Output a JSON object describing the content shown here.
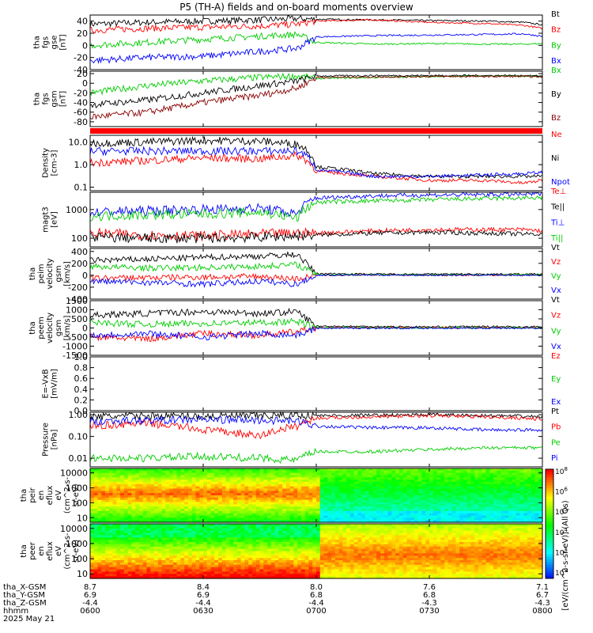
{
  "title": "P5 (TH-A) fields and on-board moments overview",
  "chart_data": [
    {
      "type": "line",
      "panel": "fgs_gse",
      "ylabel": [
        "tha",
        "fgs",
        "gse",
        "[nT]"
      ],
      "ylim": [
        -40,
        50
      ],
      "yticks": [
        -40,
        -20,
        0,
        20,
        40
      ],
      "series": [
        {
          "name": "Bt",
          "color": "#000000",
          "x": [
            600,
            615,
            630,
            645,
            655,
            700,
            715,
            730,
            745,
            755,
            800
          ],
          "y": [
            35,
            38,
            40,
            42,
            44,
            43,
            42,
            41,
            40,
            38,
            34
          ]
        },
        {
          "name": "Bz",
          "color": "#ff0000",
          "x": [
            600,
            615,
            630,
            645,
            655,
            700,
            715,
            730,
            745,
            755,
            800
          ],
          "y": [
            25,
            28,
            30,
            32,
            35,
            40,
            42,
            38,
            36,
            33,
            28
          ]
        },
        {
          "name": "By",
          "color": "#00cc00",
          "x": [
            600,
            615,
            630,
            645,
            655,
            700,
            715,
            730,
            745,
            755,
            800
          ],
          "y": [
            0,
            5,
            10,
            15,
            18,
            5,
            2,
            3,
            2,
            2,
            3
          ]
        },
        {
          "name": "Bx",
          "color": "#0000ff",
          "x": [
            600,
            615,
            630,
            645,
            655,
            700,
            715,
            730,
            745,
            755,
            800
          ],
          "y": [
            -25,
            -20,
            -18,
            -10,
            -5,
            14,
            16,
            17,
            18,
            19,
            15
          ]
        }
      ]
    },
    {
      "type": "line",
      "panel": "fgs_gsm",
      "ylabel": [
        "tha",
        "fgs",
        "gsm",
        "[nT]"
      ],
      "ylim": [
        -90,
        25
      ],
      "yticks": [
        -80,
        -60,
        -40,
        -20,
        0,
        20
      ],
      "series": [
        {
          "name": "Bx",
          "color": "#00cc00",
          "x": [
            600,
            615,
            630,
            645,
            655,
            700,
            715,
            730,
            745,
            755,
            800
          ],
          "y": [
            -20,
            -5,
            5,
            12,
            15,
            10,
            12,
            14,
            15,
            15,
            14
          ]
        },
        {
          "name": "By",
          "color": "#000000",
          "x": [
            600,
            615,
            630,
            645,
            655,
            700,
            715,
            730,
            745,
            755,
            800
          ],
          "y": [
            -45,
            -35,
            -20,
            -5,
            5,
            15,
            16,
            16,
            16,
            16,
            15
          ]
        },
        {
          "name": "Bz",
          "color": "#8b0000",
          "x": [
            600,
            615,
            630,
            645,
            655,
            700,
            715,
            730,
            745,
            755,
            800
          ],
          "y": [
            -70,
            -60,
            -40,
            -25,
            -10,
            12,
            13,
            14,
            14,
            14,
            13
          ]
        }
      ]
    },
    {
      "type": "line",
      "panel": "density",
      "ylabel": [
        "Density",
        "[cm-3]"
      ],
      "ylim": [
        0.07,
        20
      ],
      "log": true,
      "yticks": [
        0.1,
        1.0,
        10.0
      ],
      "yticklabels": [
        "0.1",
        "1.0",
        "10.0"
      ],
      "series": [
        {
          "name": "Ne",
          "color": "#ff0000",
          "x": [
            600,
            615,
            630,
            645,
            655,
            700,
            715,
            730,
            745,
            755,
            800
          ],
          "y": [
            1.2,
            1.5,
            2.0,
            1.8,
            2.5,
            0.5,
            0.3,
            0.2,
            0.2,
            0.15,
            0.2
          ]
        },
        {
          "name": "Ni",
          "color": "#000000",
          "x": [
            600,
            615,
            630,
            645,
            655,
            700,
            715,
            730,
            745,
            755,
            800
          ],
          "y": [
            9,
            10,
            12,
            11,
            8,
            0.8,
            0.4,
            0.3,
            0.3,
            0.3,
            0.3
          ]
        },
        {
          "name": "Npot",
          "color": "#0000ff",
          "x": [
            600,
            615,
            630,
            645,
            655,
            700,
            715,
            730,
            745,
            755,
            800
          ],
          "y": [
            4,
            4,
            4,
            4,
            4,
            0.6,
            0.3,
            0.3,
            0.35,
            0.4,
            0.45
          ]
        }
      ]
    },
    {
      "type": "line",
      "panel": "temperature",
      "ylabel": [
        "magt3",
        "[eV]"
      ],
      "ylim": [
        50,
        4000
      ],
      "log": true,
      "yticks": [
        100,
        1000
      ],
      "yticklabels": [
        "100",
        "1000"
      ],
      "series": [
        {
          "name": "Te⊥",
          "color": "#ff0000",
          "x": [
            600,
            615,
            630,
            645,
            655,
            700,
            715,
            730,
            745,
            755,
            800
          ],
          "y": [
            150,
            130,
            120,
            140,
            150,
            150,
            180,
            200,
            200,
            200,
            180
          ]
        },
        {
          "name": "Te||",
          "color": "#000000",
          "x": [
            600,
            615,
            630,
            645,
            655,
            700,
            715,
            730,
            745,
            755,
            800
          ],
          "y": [
            110,
            100,
            100,
            110,
            120,
            130,
            150,
            160,
            150,
            140,
            140
          ]
        },
        {
          "name": "Ti⊥",
          "color": "#0000ff",
          "x": [
            600,
            615,
            630,
            645,
            655,
            700,
            715,
            730,
            745,
            755,
            800
          ],
          "y": [
            800,
            900,
            1000,
            1100,
            700,
            2500,
            3000,
            3200,
            3300,
            3400,
            3500
          ]
        },
        {
          "name": "Ti||",
          "color": "#00cc00",
          "x": [
            600,
            615,
            630,
            645,
            655,
            700,
            715,
            730,
            745,
            755,
            800
          ],
          "y": [
            600,
            650,
            700,
            800,
            500,
            1800,
            2000,
            2200,
            2400,
            2500,
            2600
          ]
        }
      ]
    },
    {
      "type": "line",
      "panel": "peim_velocity",
      "ylabel": [
        "tha",
        "peim",
        "velocity",
        "gsm",
        "[km/s]"
      ],
      "ylim": [
        -400,
        450
      ],
      "yticks": [
        -400,
        -200,
        0,
        200,
        400
      ],
      "series": [
        {
          "name": "Vt",
          "color": "#000000",
          "x": [
            600,
            615,
            630,
            645,
            655,
            700,
            715,
            730,
            745,
            755,
            800
          ],
          "y": [
            250,
            270,
            300,
            320,
            350,
            30,
            20,
            20,
            20,
            20,
            20
          ]
        },
        {
          "name": "Vz",
          "color": "#ff0000",
          "x": [
            600,
            615,
            630,
            645,
            655,
            700,
            715,
            730,
            745,
            755,
            800
          ],
          "y": [
            -50,
            -40,
            -30,
            -20,
            -60,
            0,
            5,
            0,
            0,
            5,
            0
          ]
        },
        {
          "name": "Vy",
          "color": "#00cc00",
          "x": [
            600,
            615,
            630,
            645,
            655,
            700,
            715,
            730,
            745,
            755,
            800
          ],
          "y": [
            150,
            120,
            130,
            150,
            180,
            10,
            10,
            5,
            5,
            10,
            10
          ]
        },
        {
          "name": "Vx",
          "color": "#0000ff",
          "x": [
            600,
            615,
            630,
            645,
            655,
            700,
            715,
            730,
            745,
            755,
            800
          ],
          "y": [
            -100,
            -120,
            -150,
            -100,
            -150,
            0,
            5,
            0,
            5,
            0,
            0
          ]
        }
      ]
    },
    {
      "type": "line",
      "panel": "peem_velocity",
      "ylabel": [
        "tha",
        "peem",
        "velocity",
        "gsm",
        "[km/s]"
      ],
      "ylim": [
        -1500,
        1500
      ],
      "yticks": [
        -1500,
        -1000,
        -500,
        0,
        500,
        1000,
        1500
      ],
      "series": [
        {
          "name": "Vt",
          "color": "#000000",
          "x": [
            600,
            615,
            630,
            645,
            655,
            700,
            715,
            730,
            745,
            755,
            800
          ],
          "y": [
            700,
            800,
            900,
            800,
            900,
            100,
            80,
            60,
            80,
            60,
            70
          ]
        },
        {
          "name": "Vz",
          "color": "#ff0000",
          "x": [
            600,
            615,
            630,
            645,
            655,
            700,
            715,
            730,
            745,
            755,
            800
          ],
          "y": [
            -500,
            -600,
            -300,
            -400,
            -200,
            20,
            10,
            10,
            10,
            10,
            10
          ]
        },
        {
          "name": "Vy",
          "color": "#00cc00",
          "x": [
            600,
            615,
            630,
            645,
            655,
            700,
            715,
            730,
            745,
            755,
            800
          ],
          "y": [
            300,
            200,
            250,
            300,
            350,
            20,
            10,
            10,
            10,
            10,
            10
          ]
        },
        {
          "name": "Vx",
          "color": "#0000ff",
          "x": [
            600,
            615,
            630,
            645,
            655,
            700,
            715,
            730,
            745,
            755,
            800
          ],
          "y": [
            -400,
            -300,
            -500,
            -300,
            -400,
            -10,
            -10,
            -10,
            -10,
            -10,
            -10
          ]
        }
      ]
    },
    {
      "type": "line",
      "panel": "efield",
      "ylabel": [
        "E=-VxB",
        "[mV/m]"
      ],
      "ylim": [
        0,
        1
      ],
      "yticks": [
        0,
        0.2,
        0.4,
        0.6,
        0.8,
        1
      ],
      "yticklabels": [
        "0.0",
        "0.2",
        "0.4",
        "0.6",
        "0.8",
        "1.0"
      ],
      "series": [
        {
          "name": "Ez",
          "color": "#ff0000",
          "x": [],
          "y": []
        },
        {
          "name": "Ey",
          "color": "#00cc00",
          "x": [],
          "y": []
        },
        {
          "name": "Ex",
          "color": "#0000ff",
          "x": [],
          "y": []
        }
      ]
    },
    {
      "type": "line",
      "panel": "pressure",
      "ylabel": [
        "Pressure",
        "[nPa]"
      ],
      "ylim": [
        0.004,
        1.3
      ],
      "log": true,
      "yticks": [
        0.01,
        0.1,
        1.0
      ],
      "yticklabels": [
        "0.01",
        "0.10",
        "1.00"
      ],
      "series": [
        {
          "name": "Pt",
          "color": "#000000",
          "x": [
            600,
            615,
            630,
            645,
            655,
            700,
            715,
            730,
            745,
            755,
            800
          ],
          "y": [
            0.8,
            0.9,
            0.85,
            0.9,
            0.95,
            0.9,
            0.95,
            1.0,
            0.9,
            0.85,
            0.8
          ]
        },
        {
          "name": "Pb",
          "color": "#ff0000",
          "x": [
            600,
            615,
            630,
            645,
            655,
            700,
            715,
            730,
            745,
            755,
            800
          ],
          "y": [
            0.3,
            0.4,
            0.2,
            0.1,
            0.3,
            0.7,
            0.8,
            0.9,
            0.8,
            0.7,
            0.6
          ]
        },
        {
          "name": "Pe",
          "color": "#00cc00",
          "x": [
            600,
            615,
            630,
            645,
            655,
            700,
            715,
            730,
            745,
            755,
            800
          ],
          "y": [
            0.01,
            0.01,
            0.012,
            0.01,
            0.008,
            0.02,
            0.02,
            0.025,
            0.03,
            0.03,
            0.03
          ]
        },
        {
          "name": "Pi",
          "color": "#0000ff",
          "x": [
            600,
            615,
            630,
            645,
            655,
            700,
            715,
            730,
            745,
            755,
            800
          ],
          "y": [
            0.5,
            0.55,
            0.6,
            0.55,
            0.5,
            0.3,
            0.25,
            0.25,
            0.2,
            0.2,
            0.2
          ]
        }
      ]
    },
    {
      "type": "heatmap",
      "panel": "peir_spectrogram",
      "ylabel": [
        "tha",
        "peir",
        "en",
        "eflux",
        "eV",
        "(cm^2-s-",
        "sr-eV)"
      ],
      "ylim": [
        5,
        20000
      ],
      "log": true,
      "yticks": [
        10,
        100,
        1000,
        10000
      ],
      "yticklabels": [
        "10",
        "100",
        "1000",
        "10000"
      ]
    },
    {
      "type": "heatmap",
      "panel": "peer_spectrogram",
      "ylabel": [
        "tha",
        "peer",
        "en",
        "eflux",
        "eV",
        "(cm^2-s-",
        "sr-eV)"
      ],
      "ylim": [
        5,
        20000
      ],
      "log": true,
      "yticks": [
        10,
        100,
        1000,
        10000
      ],
      "yticklabels": [
        "10",
        "100",
        "1000",
        "10000"
      ]
    }
  ],
  "colorbar": {
    "label": "[eV/(cm^2-s-sr-eV)] (All Qs)",
    "ticks": [
      "10^2",
      "10^3",
      "10^4",
      "10^5",
      "10^6",
      "10^8"
    ]
  },
  "xaxis": {
    "xlim": [
      600,
      800
    ],
    "tick_times": [
      600,
      630,
      700,
      730,
      800
    ],
    "rows": [
      {
        "label": "tha_X-GSM",
        "values": [
          "8.7",
          "8.4",
          "8.0",
          "7.6",
          "7.1"
        ]
      },
      {
        "label": "tha_Y-GSM",
        "values": [
          "6.9",
          "6.9",
          "6.8",
          "6.8",
          "6.7"
        ]
      },
      {
        "label": "tha_Z-GSM",
        "values": [
          "-4.4",
          "-4.4",
          "-4.4",
          "-4.3",
          "-4.3"
        ]
      },
      {
        "label": "hhmm",
        "values": [
          "0600",
          "0630",
          "0700",
          "0730",
          "0800"
        ]
      }
    ],
    "date": "2025 May 21"
  }
}
